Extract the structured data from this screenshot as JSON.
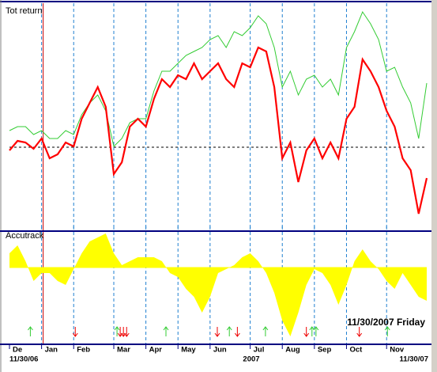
{
  "chart_data": [
    {
      "type": "line",
      "title": "Tot return",
      "ylim": [
        -104,
        176
      ],
      "baseline": 0,
      "cursor_x": 4.2,
      "series": [
        {
          "color": "#ff0000",
          "values": [
            -4,
            8,
            6,
            -2,
            11,
            -14,
            -9,
            6,
            1,
            36,
            56,
            76,
            51,
            -34,
            -19,
            26,
            36,
            26,
            61,
            86,
            76,
            91,
            86,
            106,
            86,
            96,
            106,
            86,
            76,
            106,
            101,
            126,
            121,
            76,
            -14,
            6,
            -44,
            -4,
            11,
            -14,
            6,
            -14,
            36,
            51,
            111,
            96,
            76,
            46,
            26,
            -14,
            -29,
            -84,
            -39
          ]
        },
        {
          "color": "#33cc33",
          "values": [
            21,
            26,
            26,
            16,
            21,
            11,
            11,
            21,
            16,
            41,
            56,
            66,
            46,
            1,
            11,
            31,
            36,
            36,
            71,
            96,
            96,
            106,
            116,
            121,
            126,
            136,
            141,
            126,
            146,
            141,
            151,
            166,
            156,
            126,
            76,
            96,
            66,
            86,
            91,
            76,
            86,
            66,
            126,
            146,
            171,
            156,
            136,
            96,
            101,
            76,
            56,
            11,
            81
          ]
        }
      ]
    },
    {
      "type": "area",
      "title": "Accutrack",
      "ylim": [
        -96,
        46
      ],
      "baseline": 0,
      "color": "#ffff00",
      "annotation": "11/30/2007 Friday",
      "values": [
        18,
        28,
        8,
        -17,
        -7,
        -7,
        -17,
        -22,
        -2,
        18,
        33,
        38,
        43,
        18,
        3,
        8,
        13,
        13,
        13,
        8,
        -7,
        -12,
        -27,
        -37,
        -57,
        -37,
        -7,
        -2,
        3,
        13,
        18,
        8,
        -7,
        -32,
        -67,
        -87,
        -57,
        -22,
        -2,
        -7,
        -22,
        -47,
        -22,
        8,
        23,
        8,
        -2,
        -17,
        -27,
        -7,
        -22,
        -37,
        -42
      ],
      "categories": [
        "De",
        null,
        null,
        null,
        "Jan",
        null,
        null,
        null,
        "Feb",
        null,
        null,
        null,
        null,
        "Mar",
        null,
        null,
        null,
        "Apr",
        null,
        null,
        null,
        "May",
        null,
        null,
        null,
        "Jun",
        null,
        null,
        null,
        null,
        "Jul",
        null,
        null,
        null,
        "Aug",
        null,
        null,
        null,
        "Sep",
        null,
        null,
        null,
        "Oct",
        null,
        null,
        null,
        null,
        "Nov",
        null,
        null,
        null,
        null,
        null
      ],
      "buy_signals": [
        2.6,
        13.4,
        19.5,
        27.4,
        31.9,
        37.7,
        38.2,
        47.1
      ],
      "sell_signals": [
        8.2,
        13.8,
        14.2,
        14.6,
        25.9,
        28.4,
        37.0,
        43.6
      ],
      "date_labels": {
        "start": "11/30/06",
        "year": "2007",
        "end": "11/30/07"
      }
    }
  ]
}
